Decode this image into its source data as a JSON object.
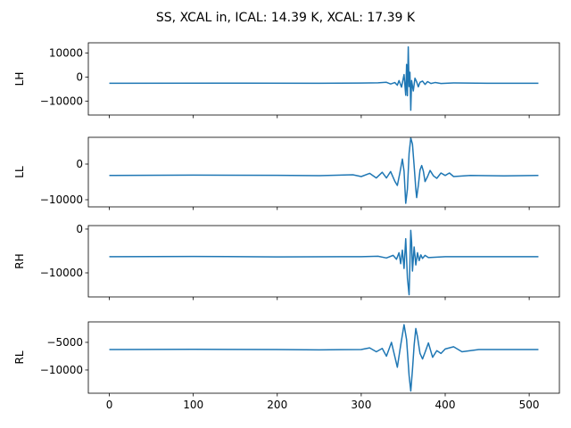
{
  "chart_data": {
    "type": "line",
    "title": "SS, XCAL in, ICAL: 14.39 K, XCAL: 17.39 K",
    "line_color": "#1f77b4",
    "grid": false,
    "legend": "none",
    "shared_x": true,
    "xlim": [
      -25,
      536
    ],
    "x_ticks": [
      0,
      100,
      200,
      300,
      400,
      500
    ],
    "x_tick_labels": [
      "0",
      "100",
      "200",
      "300",
      "400",
      "500"
    ],
    "n_points": 512,
    "panels": [
      {
        "ylabel": "LH",
        "ylim": [
          -15800,
          14200
        ],
        "yticks": [
          10000,
          0,
          -10000
        ],
        "ytick_labels": [
          "10000",
          "0",
          "−10000"
        ],
        "series": [
          {
            "baseline": -2600,
            "points": [
              [
                0,
                -2600
              ],
              [
                150,
                -2550
              ],
              [
                250,
                -2600
              ],
              [
                300,
                -2500
              ],
              [
                320,
                -2400
              ],
              [
                330,
                -2200
              ],
              [
                335,
                -2900
              ],
              [
                340,
                -2300
              ],
              [
                343,
                -3400
              ],
              [
                345,
                -1500
              ],
              [
                348,
                -4200
              ],
              [
                351,
                1000
              ],
              [
                353,
                -7600
              ],
              [
                354,
                5200
              ],
              [
                355,
                -7800
              ],
              [
                356,
                12500
              ],
              [
                357,
                -4000
              ],
              [
                358,
                2000
              ],
              [
                359,
                -13800
              ],
              [
                360,
                -1500
              ],
              [
                362,
                -5800
              ],
              [
                364,
                -500
              ],
              [
                366,
                -2000
              ],
              [
                368,
                -4100
              ],
              [
                370,
                -2200
              ],
              [
                373,
                -1700
              ],
              [
                376,
                -3100
              ],
              [
                379,
                -1900
              ],
              [
                383,
                -2700
              ],
              [
                388,
                -2300
              ],
              [
                395,
                -2700
              ],
              [
                410,
                -2450
              ],
              [
                450,
                -2600
              ],
              [
                511,
                -2600
              ]
            ]
          }
        ]
      },
      {
        "ylabel": "LL",
        "ylim": [
          -12000,
          7500
        ],
        "yticks": [
          0,
          -10000
        ],
        "ytick_labels": [
          "0",
          "−10000"
        ],
        "series": [
          {
            "baseline": -3200,
            "points": [
              [
                0,
                -3200
              ],
              [
                100,
                -3100
              ],
              [
                200,
                -3150
              ],
              [
                250,
                -3250
              ],
              [
                290,
                -3000
              ],
              [
                300,
                -3500
              ],
              [
                310,
                -2600
              ],
              [
                318,
                -3900
              ],
              [
                325,
                -2300
              ],
              [
                330,
                -3900
              ],
              [
                335,
                -2100
              ],
              [
                340,
                -4800
              ],
              [
                343,
                -6000
              ],
              [
                346,
                -2500
              ],
              [
                349,
                1400
              ],
              [
                351,
                -2000
              ],
              [
                353,
                -11000
              ],
              [
                355,
                -7000
              ],
              [
                357,
                3000
              ],
              [
                359,
                7300
              ],
              [
                361,
                5600
              ],
              [
                363,
                -500
              ],
              [
                365,
                -7000
              ],
              [
                366,
                -9400
              ],
              [
                368,
                -6000
              ],
              [
                370,
                -1700
              ],
              [
                372,
                -400
              ],
              [
                374,
                -2000
              ],
              [
                376,
                -4900
              ],
              [
                379,
                -3500
              ],
              [
                382,
                -1800
              ],
              [
                386,
                -3300
              ],
              [
                390,
                -4000
              ],
              [
                395,
                -2500
              ],
              [
                400,
                -3200
              ],
              [
                405,
                -2500
              ],
              [
                410,
                -3500
              ],
              [
                430,
                -3200
              ],
              [
                470,
                -3300
              ],
              [
                511,
                -3200
              ]
            ]
          }
        ]
      },
      {
        "ylabel": "RH",
        "ylim": [
          -15500,
          800
        ],
        "yticks": [
          0,
          -10000
        ],
        "ytick_labels": [
          "0",
          "−10000"
        ],
        "series": [
          {
            "baseline": -6300,
            "points": [
              [
                0,
                -6300
              ],
              [
                100,
                -6250
              ],
              [
                200,
                -6350
              ],
              [
                300,
                -6300
              ],
              [
                320,
                -6200
              ],
              [
                330,
                -6600
              ],
              [
                338,
                -6000
              ],
              [
                342,
                -6900
              ],
              [
                345,
                -5400
              ],
              [
                347,
                -7900
              ],
              [
                349,
                -4800
              ],
              [
                351,
                -9000
              ],
              [
                353,
                -2200
              ],
              [
                355,
                -11200
              ],
              [
                357,
                -15000
              ],
              [
                359,
                -300
              ],
              [
                360,
                -3000
              ],
              [
                361,
                -9600
              ],
              [
                363,
                -4100
              ],
              [
                365,
                -8200
              ],
              [
                367,
                -5400
              ],
              [
                369,
                -7200
              ],
              [
                371,
                -5900
              ],
              [
                373,
                -6700
              ],
              [
                376,
                -6000
              ],
              [
                380,
                -6500
              ],
              [
                400,
                -6300
              ],
              [
                511,
                -6300
              ]
            ]
          }
        ]
      },
      {
        "ylabel": "RL",
        "ylim": [
          -14200,
          -1300
        ],
        "yticks": [
          -5000,
          -10000
        ],
        "ytick_labels": [
          "−5000",
          "−10000"
        ],
        "series": [
          {
            "baseline": -6300,
            "points": [
              [
                0,
                -6300
              ],
              [
                100,
                -6250
              ],
              [
                200,
                -6300
              ],
              [
                250,
                -6350
              ],
              [
                300,
                -6300
              ],
              [
                310,
                -6000
              ],
              [
                318,
                -6700
              ],
              [
                325,
                -6100
              ],
              [
                330,
                -7500
              ],
              [
                336,
                -5000
              ],
              [
                343,
                -9500
              ],
              [
                347,
                -5500
              ],
              [
                351,
                -1800
              ],
              [
                354,
                -4500
              ],
              [
                357,
                -11000
              ],
              [
                359,
                -13800
              ],
              [
                361,
                -10000
              ],
              [
                363,
                -5500
              ],
              [
                365,
                -2500
              ],
              [
                367,
                -4000
              ],
              [
                370,
                -7000
              ],
              [
                373,
                -8000
              ],
              [
                376,
                -6800
              ],
              [
                380,
                -5100
              ],
              [
                385,
                -7700
              ],
              [
                390,
                -6500
              ],
              [
                395,
                -7000
              ],
              [
                400,
                -6200
              ],
              [
                410,
                -5800
              ],
              [
                420,
                -6700
              ],
              [
                440,
                -6300
              ],
              [
                511,
                -6300
              ]
            ]
          }
        ]
      }
    ]
  }
}
